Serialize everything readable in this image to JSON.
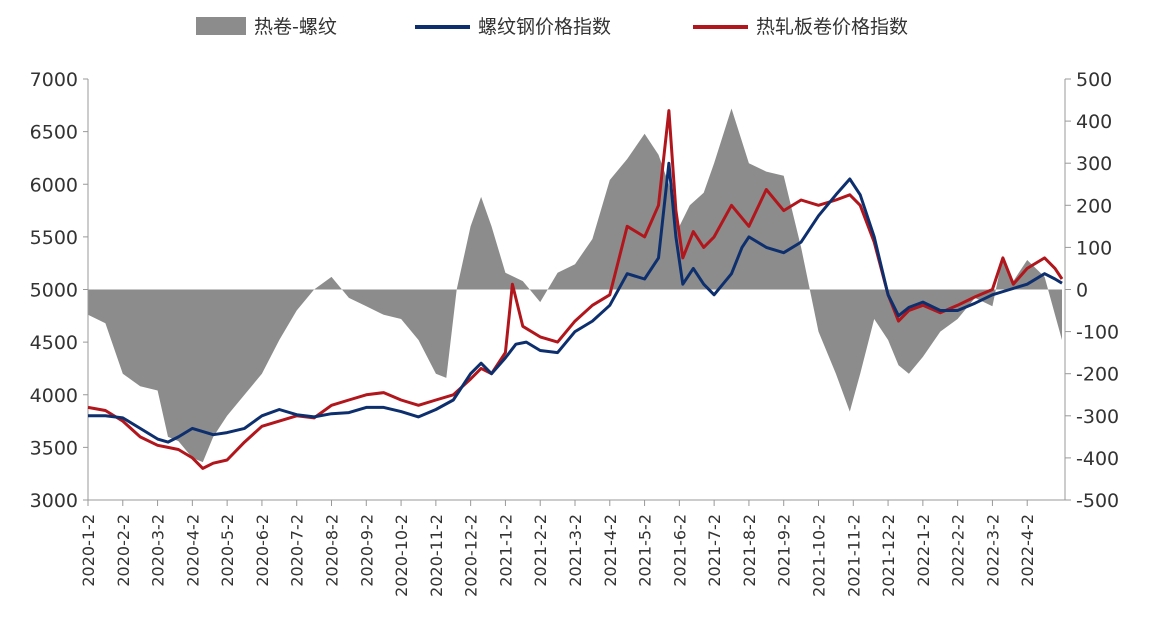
{
  "chart_data": {
    "type": "line",
    "legend": {
      "position": "top",
      "items": [
        {
          "label": "热卷-螺纹",
          "color": "#8c8c8c",
          "kind": "area"
        },
        {
          "label": "螺纹钢价格指数",
          "color": "#0d2f6e",
          "kind": "line"
        },
        {
          "label": "热轧板卷价格指数",
          "color": "#b0161c",
          "kind": "line"
        }
      ]
    },
    "y_left": {
      "ticks": [
        "7000",
        "6500",
        "6000",
        "5500",
        "5000",
        "4500",
        "4000",
        "3500",
        "3000"
      ],
      "min": 3000,
      "max": 7000
    },
    "y_right": {
      "ticks": [
        "500",
        "400",
        "300",
        "200",
        "100",
        "0",
        "-100",
        "-200",
        "-300",
        "-400",
        "-500"
      ],
      "min": -500,
      "max": 500
    },
    "x_ticks": [
      "2020-1-2",
      "2020-2-2",
      "2020-3-2",
      "2020-4-2",
      "2020-5-2",
      "2020-6-2",
      "2020-7-2",
      "2020-8-2",
      "2020-9-2",
      "2020-10-2",
      "2020-11-2",
      "2020-12-2",
      "2021-1-2",
      "2021-2-2",
      "2021-3-2",
      "2021-4-2",
      "2021-5-2",
      "2021-6-2",
      "2021-7-2",
      "2021-8-2",
      "2021-9-2",
      "2021-10-2",
      "2021-11-2",
      "2021-12-2",
      "2022-1-2",
      "2022-2-2",
      "2022-3-2",
      "2022-4-2"
    ],
    "series": [
      {
        "name": "螺纹钢价格指数",
        "axis": "left",
        "color": "#0d2f6e",
        "points": [
          [
            0,
            3800
          ],
          [
            0.5,
            3800
          ],
          [
            1,
            3780
          ],
          [
            1.5,
            3680
          ],
          [
            2,
            3580
          ],
          [
            2.3,
            3550
          ],
          [
            2.6,
            3600
          ],
          [
            3,
            3680
          ],
          [
            3.3,
            3650
          ],
          [
            3.6,
            3620
          ],
          [
            4,
            3640
          ],
          [
            4.5,
            3680
          ],
          [
            5,
            3800
          ],
          [
            5.5,
            3860
          ],
          [
            6,
            3810
          ],
          [
            6.5,
            3790
          ],
          [
            7,
            3820
          ],
          [
            7.5,
            3830
          ],
          [
            8,
            3880
          ],
          [
            8.5,
            3880
          ],
          [
            9,
            3840
          ],
          [
            9.5,
            3790
          ],
          [
            10,
            3860
          ],
          [
            10.5,
            3950
          ],
          [
            11,
            4200
          ],
          [
            11.3,
            4300
          ],
          [
            11.6,
            4200
          ],
          [
            12,
            4350
          ],
          [
            12.3,
            4480
          ],
          [
            12.6,
            4500
          ],
          [
            13,
            4420
          ],
          [
            13.5,
            4400
          ],
          [
            14,
            4600
          ],
          [
            14.5,
            4700
          ],
          [
            15,
            4850
          ],
          [
            15.5,
            5150
          ],
          [
            16,
            5100
          ],
          [
            16.4,
            5300
          ],
          [
            16.7,
            6200
          ],
          [
            16.9,
            5500
          ],
          [
            17.1,
            5050
          ],
          [
            17.4,
            5200
          ],
          [
            17.7,
            5050
          ],
          [
            18,
            4950
          ],
          [
            18.5,
            5150
          ],
          [
            18.8,
            5400
          ],
          [
            19,
            5500
          ],
          [
            19.5,
            5400
          ],
          [
            20,
            5350
          ],
          [
            20.5,
            5450
          ],
          [
            21,
            5700
          ],
          [
            21.5,
            5900
          ],
          [
            21.9,
            6050
          ],
          [
            22.2,
            5900
          ],
          [
            22.6,
            5500
          ],
          [
            23,
            4950
          ],
          [
            23.3,
            4750
          ],
          [
            23.6,
            4830
          ],
          [
            24,
            4880
          ],
          [
            24.5,
            4800
          ],
          [
            25,
            4800
          ],
          [
            25.5,
            4870
          ],
          [
            26,
            4950
          ],
          [
            26.5,
            5000
          ],
          [
            27,
            5050
          ],
          [
            27.5,
            5150
          ],
          [
            27.8,
            5100
          ],
          [
            28,
            5060
          ]
        ]
      },
      {
        "name": "热轧板卷价格指数",
        "axis": "left",
        "color": "#b0161c",
        "points": [
          [
            0,
            3880
          ],
          [
            0.5,
            3850
          ],
          [
            1,
            3750
          ],
          [
            1.5,
            3600
          ],
          [
            2,
            3520
          ],
          [
            2.3,
            3500
          ],
          [
            2.6,
            3480
          ],
          [
            3,
            3400
          ],
          [
            3.3,
            3300
          ],
          [
            3.6,
            3350
          ],
          [
            4,
            3380
          ],
          [
            4.5,
            3550
          ],
          [
            5,
            3700
          ],
          [
            5.5,
            3750
          ],
          [
            6,
            3800
          ],
          [
            6.5,
            3780
          ],
          [
            7,
            3900
          ],
          [
            7.5,
            3950
          ],
          [
            8,
            4000
          ],
          [
            8.5,
            4020
          ],
          [
            9,
            3950
          ],
          [
            9.5,
            3900
          ],
          [
            10,
            3950
          ],
          [
            10.5,
            4000
          ],
          [
            11,
            4150
          ],
          [
            11.3,
            4250
          ],
          [
            11.6,
            4200
          ],
          [
            12,
            4400
          ],
          [
            12.2,
            5050
          ],
          [
            12.5,
            4650
          ],
          [
            13,
            4550
          ],
          [
            13.5,
            4500
          ],
          [
            14,
            4700
          ],
          [
            14.5,
            4850
          ],
          [
            15,
            4950
          ],
          [
            15.5,
            5600
          ],
          [
            16,
            5500
          ],
          [
            16.4,
            5800
          ],
          [
            16.7,
            6700
          ],
          [
            16.9,
            5750
          ],
          [
            17.1,
            5300
          ],
          [
            17.4,
            5550
          ],
          [
            17.7,
            5400
          ],
          [
            18,
            5500
          ],
          [
            18.5,
            5800
          ],
          [
            19,
            5600
          ],
          [
            19.5,
            5950
          ],
          [
            20,
            5750
          ],
          [
            20.5,
            5850
          ],
          [
            21,
            5800
          ],
          [
            21.5,
            5850
          ],
          [
            21.9,
            5900
          ],
          [
            22.2,
            5800
          ],
          [
            22.6,
            5450
          ],
          [
            23,
            4950
          ],
          [
            23.3,
            4700
          ],
          [
            23.6,
            4800
          ],
          [
            24,
            4850
          ],
          [
            24.5,
            4780
          ],
          [
            25,
            4850
          ],
          [
            25.5,
            4930
          ],
          [
            26,
            5000
          ],
          [
            26.3,
            5300
          ],
          [
            26.6,
            5050
          ],
          [
            27,
            5200
          ],
          [
            27.5,
            5300
          ],
          [
            27.8,
            5200
          ],
          [
            28,
            5100
          ]
        ]
      },
      {
        "name": "热卷-螺纹",
        "axis": "right",
        "color": "#8c8c8c",
        "points": [
          [
            0,
            -60
          ],
          [
            0.5,
            -80
          ],
          [
            1,
            -200
          ],
          [
            1.5,
            -230
          ],
          [
            2,
            -240
          ],
          [
            2.3,
            -350
          ],
          [
            2.6,
            -360
          ],
          [
            3,
            -400
          ],
          [
            3.3,
            -410
          ],
          [
            3.6,
            -350
          ],
          [
            4,
            -300
          ],
          [
            4.5,
            -250
          ],
          [
            5,
            -200
          ],
          [
            5.5,
            -120
          ],
          [
            6,
            -50
          ],
          [
            6.5,
            0
          ],
          [
            7,
            30
          ],
          [
            7.5,
            -20
          ],
          [
            8,
            -40
          ],
          [
            8.5,
            -60
          ],
          [
            9,
            -70
          ],
          [
            9.5,
            -120
          ],
          [
            10,
            -200
          ],
          [
            10.3,
            -210
          ],
          [
            10.6,
            0
          ],
          [
            11,
            150
          ],
          [
            11.3,
            220
          ],
          [
            11.6,
            150
          ],
          [
            12,
            40
          ],
          [
            12.5,
            20
          ],
          [
            13,
            -30
          ],
          [
            13.5,
            40
          ],
          [
            14,
            60
          ],
          [
            14.5,
            120
          ],
          [
            15,
            260
          ],
          [
            15.5,
            310
          ],
          [
            16,
            370
          ],
          [
            16.4,
            320
          ],
          [
            16.7,
            250
          ],
          [
            17,
            150
          ],
          [
            17.3,
            200
          ],
          [
            17.7,
            230
          ],
          [
            18,
            300
          ],
          [
            18.5,
            430
          ],
          [
            19,
            300
          ],
          [
            19.5,
            280
          ],
          [
            20,
            270
          ],
          [
            20.5,
            100
          ],
          [
            21,
            -100
          ],
          [
            21.5,
            -200
          ],
          [
            21.9,
            -290
          ],
          [
            22.2,
            -200
          ],
          [
            22.6,
            -70
          ],
          [
            23,
            -120
          ],
          [
            23.3,
            -180
          ],
          [
            23.6,
            -200
          ],
          [
            24,
            -160
          ],
          [
            24.5,
            -100
          ],
          [
            25,
            -70
          ],
          [
            25.5,
            -20
          ],
          [
            26,
            -40
          ],
          [
            26.3,
            80
          ],
          [
            26.6,
            20
          ],
          [
            27,
            70
          ],
          [
            27.5,
            30
          ],
          [
            27.8,
            -60
          ],
          [
            28,
            -120
          ]
        ]
      }
    ]
  }
}
